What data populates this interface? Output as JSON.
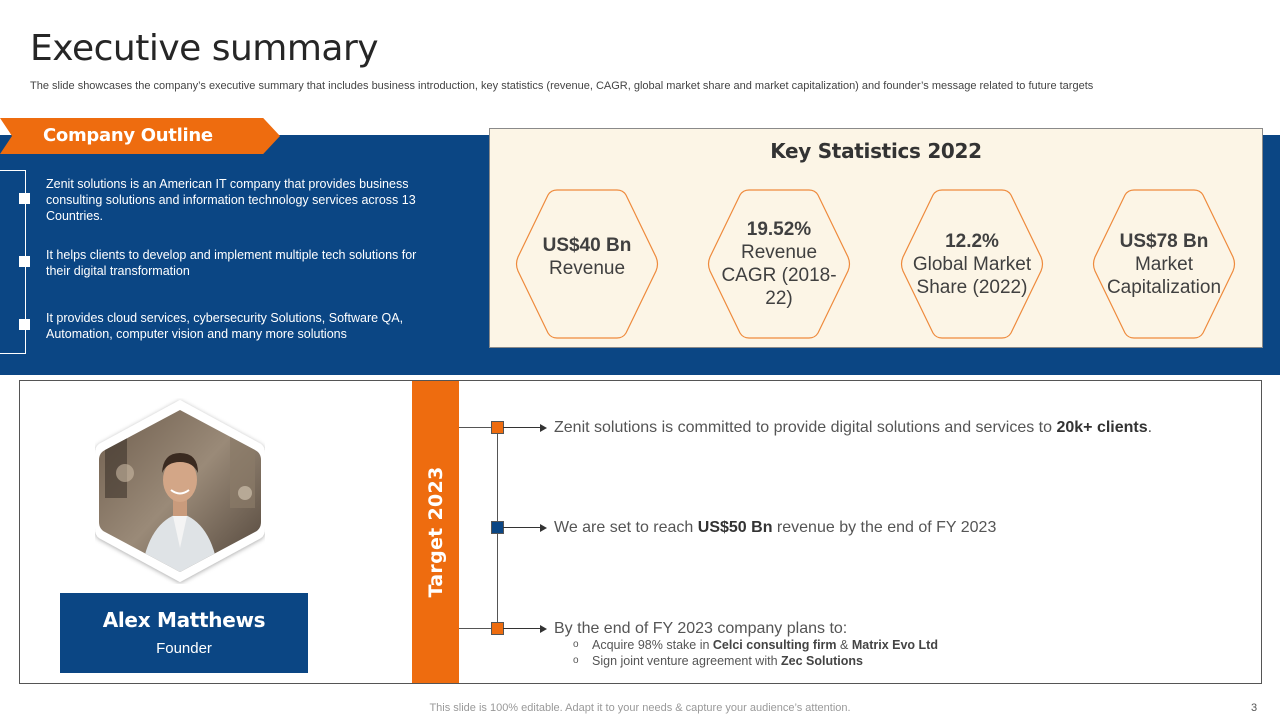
{
  "header": {
    "title": "Executive summary",
    "subtitle": "The slide showcases the company’s executive summary that includes business introduction, key statistics (revenue, CAGR,  global market share and market capitalization) and founder’s message related to future targets"
  },
  "outline": {
    "heading": "Company Outline",
    "items": [
      "Zenit solutions is an American IT company that provides  business consulting solutions and information technology services across 13 Countries.",
      "It helps clients to develop  and implement multiple tech solutions for their digital transformation",
      "It provides  cloud services, cybersecurity Solutions, Software QA, Automation, computer vision  and many more solutions"
    ]
  },
  "stats": {
    "title": "Key Statistics 2022",
    "items": [
      {
        "value": "US$40 Bn",
        "label": "Revenue"
      },
      {
        "value": "19.52%",
        "label": "Revenue CAGR (2018-22)"
      },
      {
        "value": "12.2%",
        "label": "Global Market Share (2022)"
      },
      {
        "value": "US$78 Bn",
        "label": "Market Capitalization"
      }
    ]
  },
  "founder": {
    "name": "Alex Matthews",
    "role": "Founder"
  },
  "target": {
    "label": "Target 2023",
    "items": [
      {
        "pre": "Zenit solutions is committed to provide digital solutions and services to ",
        "bold": "20k+ clients",
        "post": ".",
        "node_color": "#ee6c0f"
      },
      {
        "pre": "We are set to reach ",
        "bold": "US$50 Bn",
        "post": " revenue  by the end of FY 2023",
        "node_color": "#0b4684"
      },
      {
        "pre": "By the end of FY 2023 company plans to:",
        "bold": "",
        "post": "",
        "node_color": "#ee6c0f"
      }
    ],
    "sub_items": [
      {
        "pre": "Acquire 98% stake in ",
        "b1": "Celci consulting  firm",
        "mid": " & ",
        "b2": "Matrix Evo Ltd"
      },
      {
        "pre": "Sign joint venture  agreement  with ",
        "b1": "Zec Solutions",
        "mid": "",
        "b2": ""
      }
    ],
    "sub_bullet": "o"
  },
  "footer": {
    "note": "This slide is 100% editable. Adapt it to your needs & capture your audience’s attention.",
    "page": "3"
  },
  "colors": {
    "navy": "#0b4684",
    "orange": "#ee6c0f",
    "cream": "#fcf5e6"
  }
}
